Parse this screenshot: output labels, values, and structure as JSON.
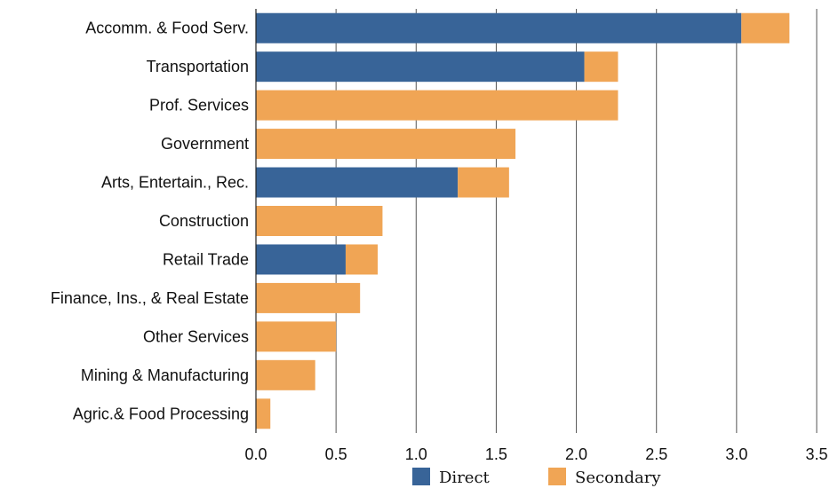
{
  "chart_data": {
    "type": "bar",
    "orientation": "horizontal",
    "stacked": true,
    "title": "",
    "xlabel": "",
    "ylabel": "",
    "xlim": [
      0,
      3.5
    ],
    "xticks": [
      "0.0",
      "0.5",
      "1.0",
      "1.5",
      "2.0",
      "2.5",
      "3.0",
      "3.5"
    ],
    "grid": true,
    "legend_position": "bottom",
    "categories": [
      "Accomm. & Food Serv.",
      "Transportation",
      "Prof. Services",
      "Government",
      "Arts, Entertain., Rec.",
      "Construction",
      "Retail Trade",
      "Finance, Ins., & Real Estate",
      "Other Services",
      "Mining & Manufacturing",
      "Agric.& Food Processing"
    ],
    "series": [
      {
        "name": "Direct",
        "color": "#386498",
        "values": [
          3.03,
          2.05,
          0,
          0,
          1.26,
          0,
          0.56,
          0,
          0,
          0,
          0
        ]
      },
      {
        "name": "Secondary",
        "color": "#f0a555",
        "values": [
          0.3,
          0.21,
          2.26,
          1.62,
          0.32,
          0.79,
          0.2,
          0.65,
          0.5,
          0.37,
          0.09
        ]
      }
    ]
  }
}
